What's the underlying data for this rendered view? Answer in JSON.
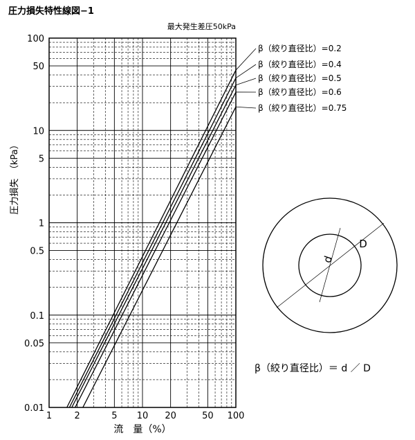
{
  "figure_title": "圧力損失特性線図−1",
  "chart_data": {
    "type": "line",
    "subtitle": "最大発生差圧50kPa",
    "xlabel": "流　量（%）",
    "ylabel": "圧力損失　（kPa）",
    "x_scale": "log",
    "y_scale": "log",
    "xlim": [
      1,
      100
    ],
    "ylim": [
      0.01,
      100
    ],
    "x_ticks": [
      {
        "v": 1,
        "label": "1"
      },
      {
        "v": 2,
        "label": "2"
      },
      {
        "v": 5,
        "label": "5"
      },
      {
        "v": 10,
        "label": "10"
      },
      {
        "v": 20,
        "label": "20"
      },
      {
        "v": 50,
        "label": "50"
      },
      {
        "v": 100,
        "label": "100"
      }
    ],
    "y_ticks": [
      {
        "v": 100,
        "label": "100"
      },
      {
        "v": 50,
        "label": "50"
      },
      {
        "v": 10,
        "label": "10"
      },
      {
        "v": 5,
        "label": "5"
      },
      {
        "v": 1,
        "label": "1"
      },
      {
        "v": 0.5,
        "label": "0.5"
      },
      {
        "v": 0.1,
        "label": "0.1"
      },
      {
        "v": 0.05,
        "label": "0.05"
      },
      {
        "v": 0.01,
        "label": "0.01"
      }
    ],
    "grid": true,
    "series": [
      {
        "name": "β（絞り直径比）=0.2",
        "x": [
          1.55,
          100
        ],
        "y": [
          0.01,
          45
        ]
      },
      {
        "name": "β（絞り直径比）=0.4",
        "x": [
          1.65,
          100
        ],
        "y": [
          0.01,
          37
        ]
      },
      {
        "name": "β（絞り直径比）=0.5",
        "x": [
          1.75,
          100
        ],
        "y": [
          0.01,
          31
        ]
      },
      {
        "name": "β（絞り直径比）=0.6",
        "x": [
          1.9,
          100
        ],
        "y": [
          0.01,
          26
        ]
      },
      {
        "name": "β（絞り直径比）=0.75",
        "x": [
          2.3,
          100
        ],
        "y": [
          0.01,
          18
        ]
      }
    ]
  },
  "diagram": {
    "label_d": "d",
    "label_D": "D",
    "formula": "β（絞り直径比）＝ d ／ D"
  }
}
